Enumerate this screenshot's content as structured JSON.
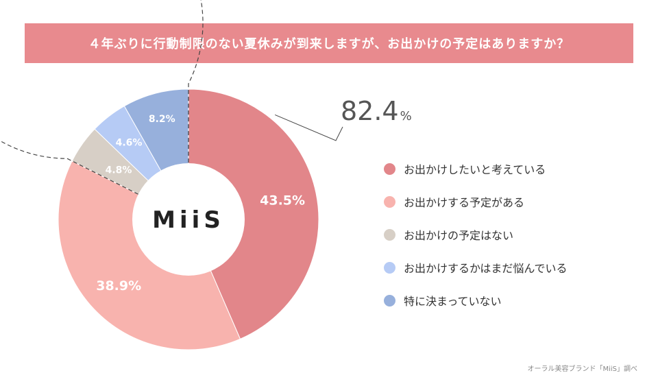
{
  "chart_data": {
    "type": "pie",
    "title": "４年ぶりに行動制限のない夏休みが到来しますが、お出かけの予定はありますか？",
    "center_label": "MiiS",
    "categories": [
      "お出かけしたいと考えている",
      "お出かけする予定がある",
      "お出かけの予定はない",
      "お出かけするかはまだ悩んでいる",
      "特に決まっていない"
    ],
    "values": [
      43.5,
      38.9,
      4.8,
      4.6,
      8.2
    ],
    "value_labels": [
      "43.5%",
      "38.9%",
      "4.8%",
      "4.6%",
      "8.2%"
    ],
    "colors": [
      "#e2868a",
      "#f8b3ae",
      "#d7cfc6",
      "#b6cbf5",
      "#97b0dc"
    ],
    "highlight": {
      "value": "82.4",
      "unit": "%",
      "covers": [
        "お出かけしたいと考えている",
        "お出かけする予定がある"
      ]
    },
    "legend_position": "right"
  },
  "source": "オーラル美容ブランド「MiiS」調べ"
}
